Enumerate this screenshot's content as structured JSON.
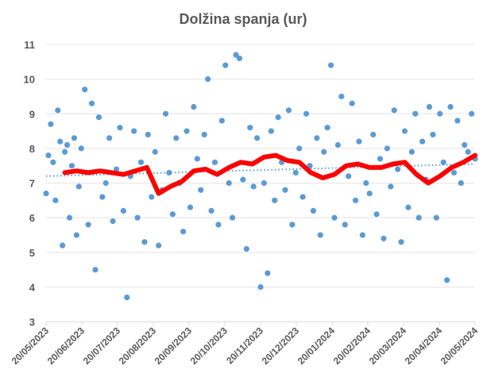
{
  "chart_data": {
    "type": "scatter",
    "title": "Dolžina spanja  (ur)",
    "xlabel": "",
    "ylabel": "",
    "ylim": [
      3,
      11
    ],
    "yticks": [
      3,
      4,
      5,
      6,
      7,
      8,
      9,
      10,
      11
    ],
    "x_start": "2023-05-20",
    "x_end": "2024-05-20",
    "xtick_labels": [
      "20/05/2023",
      "20/06/2023",
      "20/07/2023",
      "20/08/2023",
      "20/09/2023",
      "20/10/2023",
      "20/11/2023",
      "20/12/2023",
      "20/01/2024",
      "20/02/2024",
      "20/03/2024",
      "20/04/2024",
      "20/05/2024"
    ],
    "grid": "horizontal",
    "legend": "none",
    "colors": {
      "points": "#5B9BD5",
      "moving_average": "#FF0000",
      "trend": "#5B9BD5",
      "axis": "#D9D9D9"
    },
    "series": [
      {
        "type": "scatter",
        "x": [
          "2023-05-20",
          "2023-05-22",
          "2023-05-24",
          "2023-05-26",
          "2023-05-28",
          "2023-05-30",
          "2023-06-01",
          "2023-06-03",
          "2023-06-05",
          "2023-06-07",
          "2023-06-09",
          "2023-06-11",
          "2023-06-13",
          "2023-06-15",
          "2023-06-17",
          "2023-06-19",
          "2023-06-22",
          "2023-06-25",
          "2023-06-28",
          "2023-07-01",
          "2023-07-04",
          "2023-07-07",
          "2023-07-10",
          "2023-07-13",
          "2023-07-16",
          "2023-07-19",
          "2023-07-22",
          "2023-07-25",
          "2023-07-28",
          "2023-07-31",
          "2023-08-03",
          "2023-08-06",
          "2023-08-09",
          "2023-08-12",
          "2023-08-15",
          "2023-08-18",
          "2023-08-21",
          "2023-08-24",
          "2023-08-27",
          "2023-08-30",
          "2023-09-02",
          "2023-09-05",
          "2023-09-08",
          "2023-09-11",
          "2023-09-14",
          "2023-09-17",
          "2023-09-20",
          "2023-09-23",
          "2023-09-26",
          "2023-09-29",
          "2023-10-02",
          "2023-10-05",
          "2023-10-08",
          "2023-10-11",
          "2023-10-14",
          "2023-10-17",
          "2023-10-20",
          "2023-10-23",
          "2023-10-26",
          "2023-10-29",
          "2023-11-01",
          "2023-11-04",
          "2023-11-07",
          "2023-11-10",
          "2023-11-13",
          "2023-11-16",
          "2023-11-19",
          "2023-11-22",
          "2023-11-25",
          "2023-11-28",
          "2023-12-01",
          "2023-12-04",
          "2023-12-07",
          "2023-12-10",
          "2023-12-13",
          "2023-12-16",
          "2023-12-19",
          "2023-12-22",
          "2023-12-25",
          "2023-12-28",
          "2023-12-31",
          "2024-01-03",
          "2024-01-06",
          "2024-01-09",
          "2024-01-12",
          "2024-01-15",
          "2024-01-18",
          "2024-01-21",
          "2024-01-24",
          "2024-01-27",
          "2024-01-30",
          "2024-02-02",
          "2024-02-05",
          "2024-02-08",
          "2024-02-11",
          "2024-02-14",
          "2024-02-17",
          "2024-02-20",
          "2024-02-23",
          "2024-02-26",
          "2024-02-29",
          "2024-03-03",
          "2024-03-06",
          "2024-03-09",
          "2024-03-12",
          "2024-03-15",
          "2024-03-18",
          "2024-03-21",
          "2024-03-24",
          "2024-03-27",
          "2024-03-30",
          "2024-04-02",
          "2024-04-05",
          "2024-04-08",
          "2024-04-11",
          "2024-04-14",
          "2024-04-17",
          "2024-04-20",
          "2024-04-23",
          "2024-04-26",
          "2024-04-29",
          "2024-05-02",
          "2024-05-05",
          "2024-05-08",
          "2024-05-11",
          "2024-05-14",
          "2024-05-17",
          "2024-05-20"
        ],
        "y": [
          6.7,
          7.8,
          8.7,
          7.6,
          6.5,
          9.1,
          8.2,
          5.2,
          7.9,
          8.1,
          6.0,
          7.5,
          8.3,
          5.5,
          6.9,
          8.0,
          9.7,
          5.8,
          9.3,
          4.5,
          8.9,
          6.6,
          7.0,
          8.3,
          5.9,
          7.4,
          8.6,
          6.2,
          3.7,
          7.2,
          8.5,
          6.0,
          7.6,
          5.3,
          8.4,
          6.6,
          7.9,
          5.2,
          6.8,
          9.0,
          7.3,
          6.1,
          8.3,
          7.0,
          5.6,
          8.5,
          6.3,
          9.2,
          7.7,
          6.8,
          8.4,
          10.0,
          6.2,
          7.6,
          5.8,
          8.8,
          10.4,
          7.0,
          6.0,
          10.7,
          10.6,
          7.1,
          5.1,
          8.6,
          6.9,
          8.3,
          4.0,
          7.0,
          4.4,
          8.5,
          6.5,
          8.9,
          7.6,
          6.8,
          9.1,
          5.8,
          7.3,
          8.0,
          6.6,
          9.0,
          7.5,
          6.2,
          8.3,
          5.5,
          7.9,
          8.6,
          10.4,
          6.0,
          8.1,
          9.5,
          5.8,
          7.2,
          9.3,
          6.5,
          8.2,
          5.5,
          7.0,
          6.7,
          8.4,
          6.1,
          7.7,
          5.4,
          8.0,
          6.9,
          9.1,
          7.4,
          5.3,
          8.5,
          6.3,
          7.9,
          9.0,
          6.0,
          8.2,
          7.1,
          9.2,
          8.4,
          6.0,
          9.0,
          7.6,
          4.2,
          9.2,
          7.3,
          8.8,
          7.0,
          8.1,
          7.9,
          9.0,
          7.7
        ]
      },
      {
        "type": "line",
        "style": "moving-average",
        "x": [
          "2023-06-05",
          "2023-06-15",
          "2023-06-25",
          "2023-07-05",
          "2023-07-15",
          "2023-07-25",
          "2023-08-04",
          "2023-08-14",
          "2023-08-24",
          "2023-09-03",
          "2023-09-13",
          "2023-09-23",
          "2023-10-03",
          "2023-10-13",
          "2023-10-23",
          "2023-11-02",
          "2023-11-12",
          "2023-11-22",
          "2023-12-02",
          "2023-12-12",
          "2023-12-22",
          "2024-01-01",
          "2024-01-11",
          "2024-01-21",
          "2024-01-31",
          "2024-02-10",
          "2024-02-20",
          "2024-03-01",
          "2024-03-11",
          "2024-03-21",
          "2024-03-31",
          "2024-04-10",
          "2024-04-20",
          "2024-04-30",
          "2024-05-10",
          "2024-05-20"
        ],
        "y": [
          7.3,
          7.35,
          7.3,
          7.35,
          7.3,
          7.25,
          7.35,
          7.45,
          6.7,
          6.9,
          7.05,
          7.35,
          7.4,
          7.25,
          7.45,
          7.6,
          7.55,
          7.75,
          7.8,
          7.65,
          7.6,
          7.3,
          7.15,
          7.25,
          7.5,
          7.55,
          7.45,
          7.45,
          7.55,
          7.6,
          7.25,
          7.0,
          7.2,
          7.45,
          7.6,
          7.8
        ]
      },
      {
        "type": "line",
        "style": "linear-trend",
        "x": [
          "2023-05-20",
          "2024-05-20"
        ],
        "y": [
          7.2,
          7.55
        ]
      }
    ]
  }
}
